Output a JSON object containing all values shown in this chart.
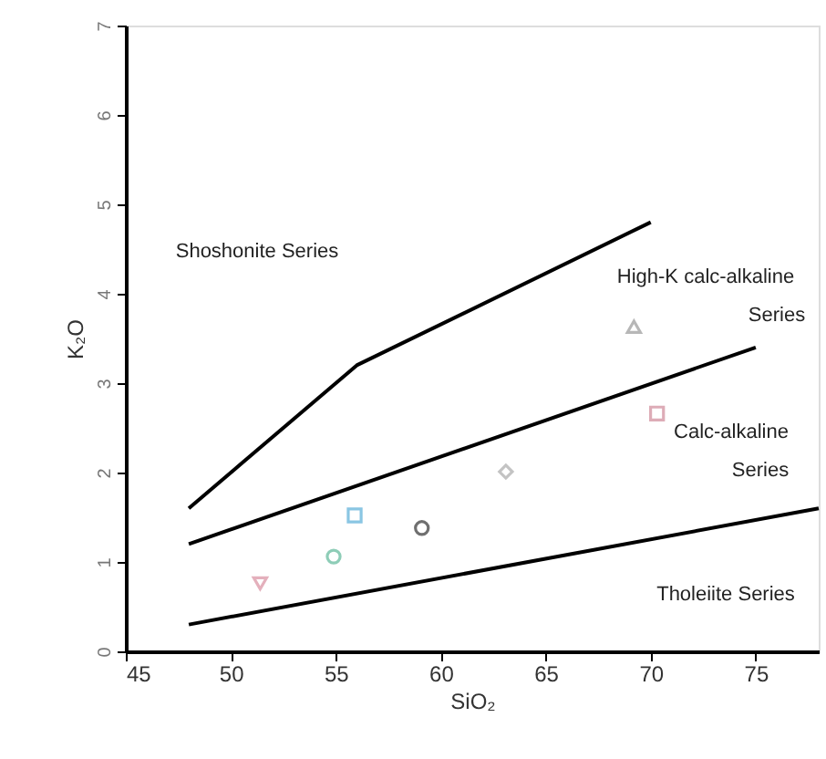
{
  "chart_data": {
    "type": "scatter",
    "xlabel": "SiO₂",
    "ylabel": "K₂O",
    "xlim": [
      45,
      78
    ],
    "xticks": [
      45,
      50,
      55,
      60,
      65,
      70,
      75
    ],
    "ylim": [
      0,
      7
    ],
    "yticks": [
      0,
      1,
      2,
      3,
      4,
      5,
      6,
      7
    ],
    "grid": false,
    "series": [
      {
        "type": "line",
        "line_style": "solid",
        "color": "#000000",
        "x": [
          48,
          56,
          70
        ],
        "values": [
          1.6,
          3.2,
          4.8
        ]
      },
      {
        "type": "line",
        "line_style": "solid",
        "color": "#000000",
        "x": [
          48,
          75
        ],
        "values": [
          1.2,
          3.4
        ]
      },
      {
        "type": "line",
        "line_style": "solid",
        "color": "#000000",
        "x": [
          48,
          78
        ],
        "values": [
          0.3,
          1.6
        ]
      },
      {
        "marker": "triangle-down",
        "color": "#d98fa0",
        "x": [
          51.4
        ],
        "values": [
          0.76
        ]
      },
      {
        "marker": "circle",
        "color": "#5fb89a",
        "x": [
          54.9
        ],
        "values": [
          1.06
        ]
      },
      {
        "marker": "square",
        "color": "#5aaed8",
        "x": [
          55.9
        ],
        "values": [
          1.52
        ]
      },
      {
        "marker": "circle",
        "color": "#333333",
        "x": [
          59.1
        ],
        "values": [
          1.38
        ]
      },
      {
        "marker": "diamond",
        "color": "#aaaaaa",
        "x": [
          63.1
        ],
        "values": [
          2.01
        ]
      },
      {
        "marker": "square",
        "color": "#d08a9a",
        "x": [
          70.3
        ],
        "values": [
          2.66
        ]
      },
      {
        "marker": "triangle",
        "color": "#999999",
        "x": [
          69.2
        ],
        "values": [
          3.61
        ]
      }
    ],
    "annotations": [
      "Shoshonite Series",
      "High-K calc-alkaline",
      "Series",
      "Calc-alkaline",
      "Series",
      "Tholeiite Series"
    ]
  }
}
